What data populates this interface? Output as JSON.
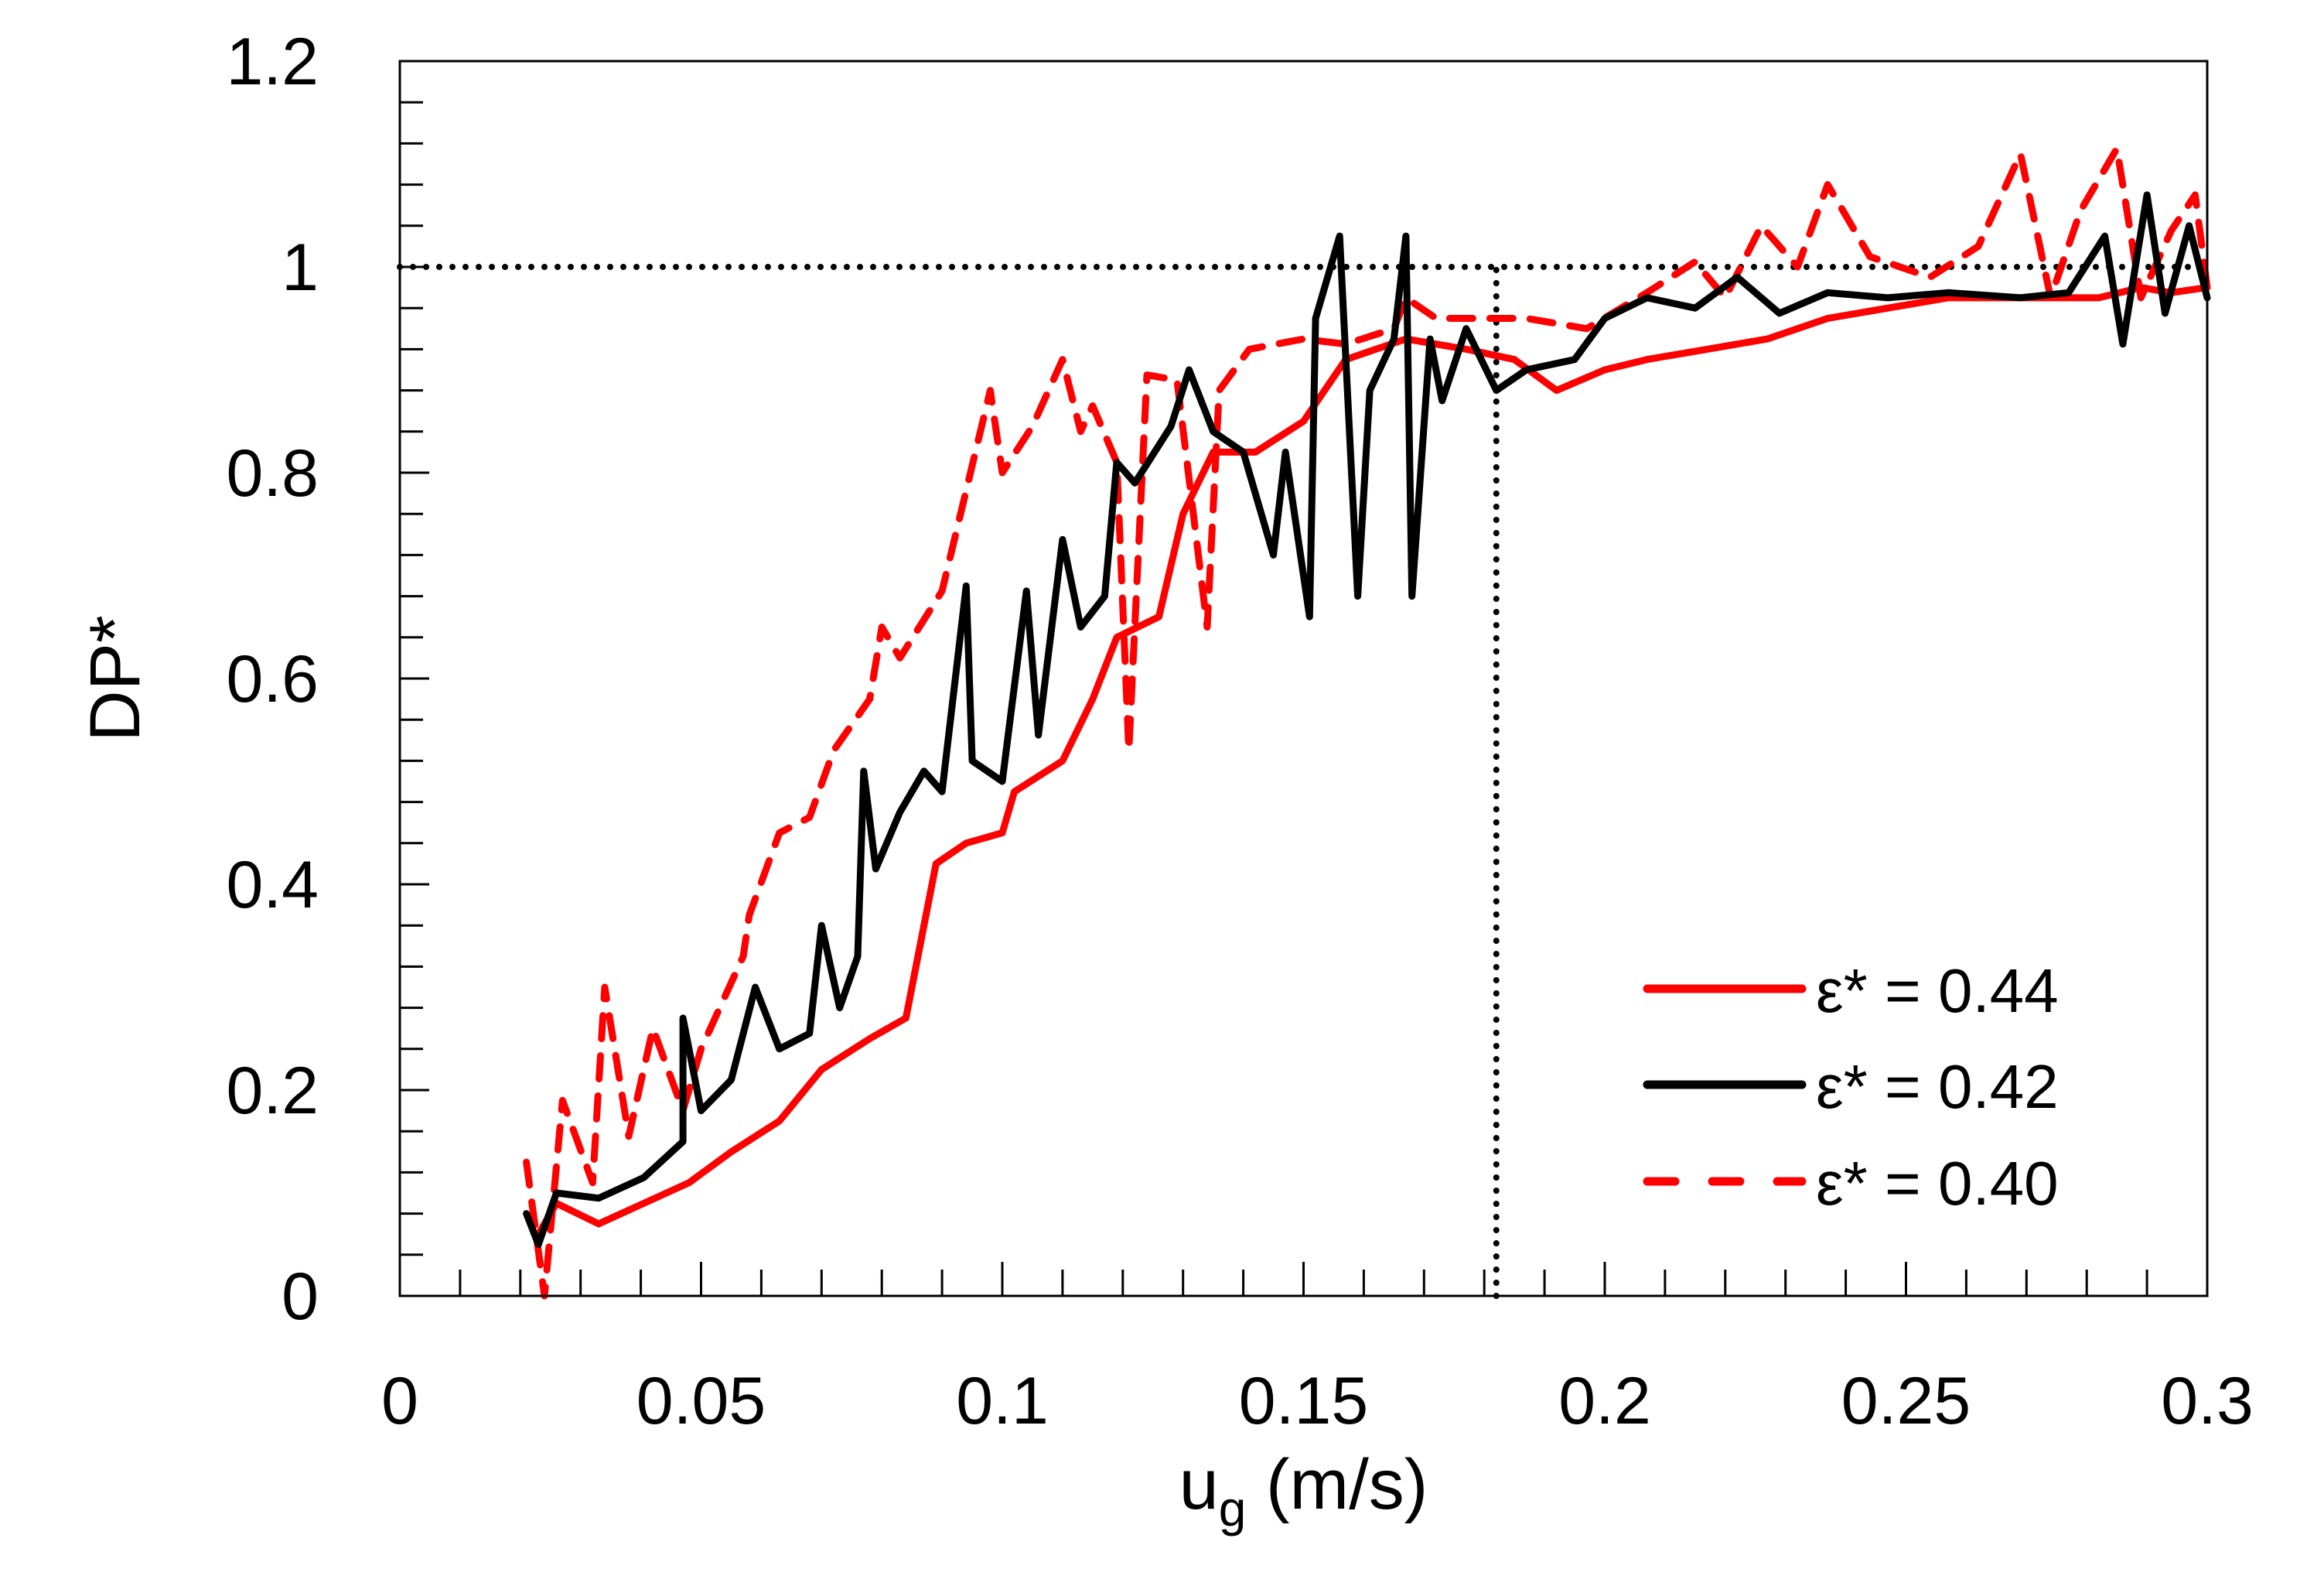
{
  "chart_data": {
    "type": "line",
    "title": "",
    "xlabel": "u",
    "xlabel_subscript": "g",
    "xlabel_units": " (m/s)",
    "ylabel": "DP*",
    "xlim": [
      0,
      0.3
    ],
    "ylim": [
      0,
      1.2
    ],
    "x_ticks": [
      0,
      0.05,
      0.1,
      0.15,
      0.2,
      0.25,
      0.3
    ],
    "x_tick_labels": [
      "0",
      "0.05",
      "0.1",
      "0.15",
      "0.2",
      "0.25",
      "0.3"
    ],
    "x_minor_step": 0.01,
    "y_ticks": [
      0,
      0.2,
      0.4,
      0.6,
      0.8,
      1,
      1.2
    ],
    "y_tick_labels": [
      "0",
      "0.2",
      "0.4",
      "0.6",
      "0.8",
      "1",
      "1.2"
    ],
    "y_minor_step": 0.04,
    "grid": false,
    "legend_position": "bottom-right",
    "reference_lines": [
      {
        "orientation": "horizontal",
        "value": 1.0,
        "style": "dotted",
        "color": "#000000",
        "x_from": 0,
        "x_to": 0.3
      },
      {
        "orientation": "vertical",
        "value": 0.182,
        "style": "dotted",
        "color": "#000000",
        "y_from": 0,
        "y_to": 1.0
      }
    ],
    "series": [
      {
        "name": "ε* = 0.44",
        "color": "#ff0000",
        "style": "solid",
        "x": [
          0.023,
          0.026,
          0.033,
          0.0405,
          0.048,
          0.055,
          0.063,
          0.07,
          0.078,
          0.084,
          0.086,
          0.089,
          0.094,
          0.1,
          0.102,
          0.11,
          0.115,
          0.119,
          0.126,
          0.13,
          0.135,
          0.142,
          0.15,
          0.157,
          0.167,
          0.177,
          0.185,
          0.192,
          0.2,
          0.207,
          0.217,
          0.227,
          0.237,
          0.247,
          0.257,
          0.269,
          0.282,
          0.289,
          0.294,
          0.3
        ],
        "y": [
          0.06,
          0.09,
          0.07,
          0.09,
          0.11,
          0.14,
          0.17,
          0.22,
          0.25,
          0.27,
          0.33,
          0.42,
          0.44,
          0.45,
          0.49,
          0.52,
          0.58,
          0.64,
          0.66,
          0.76,
          0.82,
          0.82,
          0.85,
          0.91,
          0.93,
          0.92,
          0.91,
          0.88,
          0.9,
          0.91,
          0.92,
          0.93,
          0.95,
          0.96,
          0.97,
          0.97,
          0.97,
          0.98,
          0.975,
          0.98
        ]
      },
      {
        "name": "ε* = 0.42",
        "color": "#000000",
        "style": "solid",
        "x": [
          0.021,
          0.023,
          0.026,
          0.033,
          0.0405,
          0.047,
          0.047,
          0.05,
          0.055,
          0.059,
          0.063,
          0.068,
          0.07,
          0.073,
          0.076,
          0.077,
          0.079,
          0.083,
          0.087,
          0.09,
          0.094,
          0.095,
          0.1,
          0.104,
          0.106,
          0.11,
          0.113,
          0.117,
          0.119,
          0.122,
          0.128,
          0.131,
          0.135,
          0.14,
          0.145,
          0.147,
          0.151,
          0.152,
          0.156,
          0.159,
          0.161,
          0.165,
          0.167,
          0.168,
          0.171,
          0.173,
          0.177,
          0.182,
          0.187,
          0.195,
          0.2,
          0.207,
          0.215,
          0.222,
          0.229,
          0.237,
          0.247,
          0.257,
          0.269,
          0.277,
          0.283,
          0.286,
          0.29,
          0.293,
          0.297,
          0.3
        ],
        "y": [
          0.08,
          0.05,
          0.1,
          0.095,
          0.115,
          0.15,
          0.27,
          0.18,
          0.21,
          0.3,
          0.24,
          0.255,
          0.36,
          0.28,
          0.33,
          0.51,
          0.415,
          0.47,
          0.51,
          0.49,
          0.69,
          0.52,
          0.5,
          0.685,
          0.545,
          0.735,
          0.65,
          0.68,
          0.81,
          0.79,
          0.845,
          0.9,
          0.84,
          0.82,
          0.72,
          0.82,
          0.66,
          0.95,
          1.03,
          0.68,
          0.88,
          0.93,
          1.03,
          0.68,
          0.93,
          0.87,
          0.94,
          0.88,
          0.9,
          0.91,
          0.95,
          0.97,
          0.96,
          0.99,
          0.955,
          0.975,
          0.97,
          0.975,
          0.97,
          0.975,
          1.03,
          0.925,
          1.07,
          0.955,
          1.04,
          0.97
        ]
      },
      {
        "name": "ε* = 0.40",
        "color": "#ff0000",
        "style": "dashed",
        "x": [
          0.021,
          0.024,
          0.027,
          0.032,
          0.034,
          0.038,
          0.042,
          0.047,
          0.05,
          0.057,
          0.058,
          0.063,
          0.068,
          0.072,
          0.078,
          0.08,
          0.083,
          0.09,
          0.098,
          0.1,
          0.105,
          0.11,
          0.113,
          0.115,
          0.119,
          0.121,
          0.124,
          0.129,
          0.134,
          0.136,
          0.141,
          0.15,
          0.157,
          0.165,
          0.167,
          0.172,
          0.18,
          0.187,
          0.197,
          0.207,
          0.215,
          0.22,
          0.226,
          0.232,
          0.237,
          0.244,
          0.254,
          0.262,
          0.269,
          0.274,
          0.279,
          0.285,
          0.289,
          0.294,
          0.298,
          0.3
        ],
        "y": [
          0.13,
          0.0,
          0.19,
          0.11,
          0.3,
          0.155,
          0.26,
          0.18,
          0.24,
          0.33,
          0.37,
          0.45,
          0.465,
          0.53,
          0.58,
          0.65,
          0.62,
          0.685,
          0.88,
          0.8,
          0.845,
          0.91,
          0.84,
          0.865,
          0.81,
          0.53,
          0.895,
          0.89,
          0.65,
          0.88,
          0.92,
          0.93,
          0.925,
          0.94,
          0.97,
          0.95,
          0.95,
          0.95,
          0.94,
          0.975,
          1.005,
          0.97,
          1.04,
          1.0,
          1.08,
          1.01,
          0.99,
          1.02,
          1.11,
          0.97,
          1.055,
          1.115,
          0.97,
          1.035,
          1.07,
          0.98
        ]
      }
    ]
  }
}
